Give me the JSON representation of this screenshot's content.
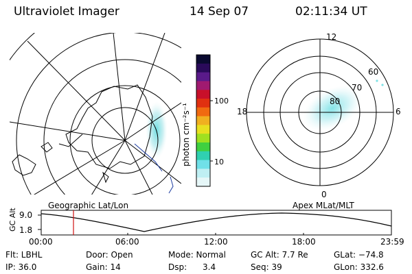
{
  "header": {
    "instrument": "Ultraviolet Imager",
    "date": "14 Sep 07",
    "time": "02:11:34 UT"
  },
  "geo_panel": {
    "label": "Geographic Lat/Lon"
  },
  "mag_panel": {
    "label": "Apex MLat/MLT",
    "mlt_labels": {
      "top": "12",
      "left": "18",
      "right": "6",
      "bottom": "0"
    },
    "lat_labels": [
      "60",
      "70",
      "80"
    ]
  },
  "colorbar": {
    "unit_label": "photon cm⁻²s⁻¹",
    "ticks": [
      "100",
      "10"
    ],
    "colors": [
      "#0a0a30",
      "#2a0a5a",
      "#5a1a8a",
      "#a01a70",
      "#c8102a",
      "#e03010",
      "#f06a10",
      "#f0b020",
      "#e8e020",
      "#a0e020",
      "#40d040",
      "#30d0b0",
      "#70e0e8",
      "#bfeff3",
      "#e6f7f8"
    ]
  },
  "timeline": {
    "axis_label": "GC Alt",
    "y_ticks": [
      "9.0",
      "1.8"
    ],
    "x_ticks": [
      "00:00",
      "06:00",
      "12:00",
      "18:00",
      "23:59"
    ],
    "current_marker_time": "02:11",
    "marker_color": "#d01010"
  },
  "status": {
    "filter": "Flt: LBHL",
    "door": "Door: Open",
    "mode": "Mode: Normal",
    "gc_alt": "GC Alt: 7.7 Re",
    "glat": "GLat: −74.8",
    "ip": "IP: 36.0",
    "gain": "Gain: 14",
    "dsp": "Dsp:      3.4",
    "seq": "Seq: 39",
    "glon": "GLon: 332.6"
  }
}
